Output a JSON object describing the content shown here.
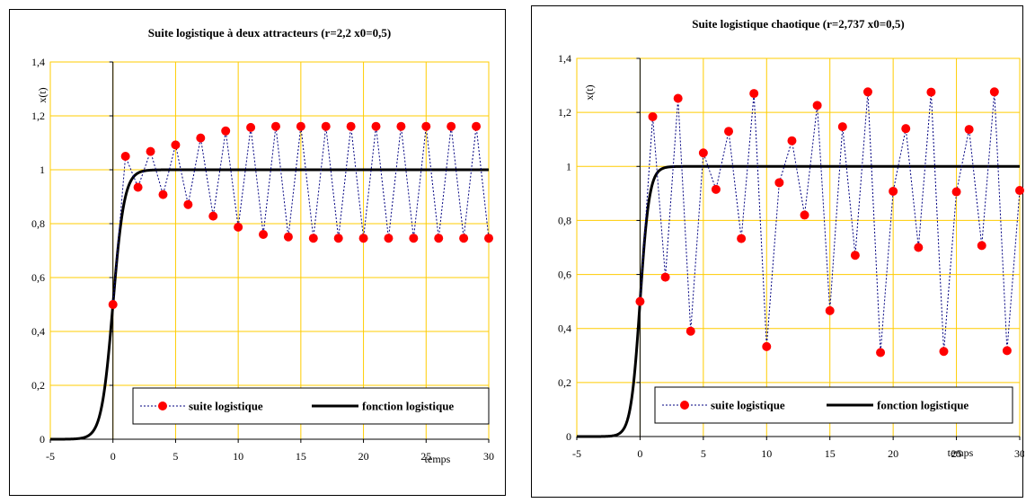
{
  "colors": {
    "plot_background": "#ffffff",
    "gridline": "#ffcc00",
    "axis": "#000000",
    "marker": "#ff0000",
    "dotted_line": "#000080",
    "function_line": "#000000"
  },
  "chart_data": [
    {
      "type": "line",
      "title": "Suite logistique à deux attracteurs (r=2,2 x0=0,5)",
      "ylabel": "x(t)",
      "xlabel": "temps",
      "xlim": [
        -5,
        30
      ],
      "ylim": [
        0,
        1.4
      ],
      "x_ticks": [
        "-5",
        "0",
        "5",
        "10",
        "15",
        "20",
        "25",
        "30"
      ],
      "y_ticks": [
        "0",
        "0,2",
        "0,4",
        "0,6",
        "0,8",
        "1",
        "1,2",
        "1,4"
      ],
      "grid": true,
      "legend": "bottom-right",
      "series": [
        {
          "name": "suite logistique",
          "x": [
            0,
            1,
            2,
            3,
            4,
            5,
            6,
            7,
            8,
            9,
            10,
            11,
            12,
            13,
            14,
            15,
            16,
            17,
            18,
            19,
            20,
            21,
            22,
            23,
            24,
            25,
            26,
            27,
            28,
            29,
            30
          ],
          "y": [
            0.5,
            1.05,
            0.935,
            1.068,
            0.908,
            1.092,
            0.871,
            1.118,
            0.828,
            1.144,
            0.787,
            1.157,
            0.76,
            1.161,
            0.751,
            1.161,
            0.746,
            1.161,
            0.746,
            1.161,
            0.746,
            1.161,
            0.746,
            1.161,
            0.746,
            1.161,
            0.746,
            1.161,
            0.746,
            1.161,
            0.746
          ]
        },
        {
          "name": "fonction logistique",
          "function": "logistic",
          "r": 2.2,
          "x0": 0.5,
          "x_range": [
            -5,
            30
          ]
        }
      ]
    },
    {
      "type": "line",
      "title": "Suite logistique chaotique (r=2,737  x0=0,5)",
      "ylabel": "x(t)",
      "xlabel": "temps",
      "xlim": [
        -5,
        30
      ],
      "ylim": [
        0,
        1.4
      ],
      "x_ticks": [
        "-5",
        "0",
        "5",
        "10",
        "15",
        "20",
        "25",
        "30"
      ],
      "y_ticks": [
        "0",
        "0,2",
        "0,4",
        "0,6",
        "0,8",
        "1",
        "1,2",
        "1,4"
      ],
      "grid": true,
      "legend": "bottom-right",
      "series": [
        {
          "name": "suite logistique",
          "x": [
            0,
            1,
            2,
            3,
            4,
            5,
            6,
            7,
            8,
            9,
            10,
            11,
            12,
            13,
            14,
            15,
            16,
            17,
            18,
            19,
            20,
            21,
            22,
            23,
            24,
            25,
            26,
            27,
            28,
            29,
            30
          ],
          "y": [
            0.5,
            1.184,
            0.59,
            1.252,
            0.39,
            1.05,
            0.915,
            1.13,
            0.733,
            1.27,
            0.333,
            0.94,
            1.095,
            0.82,
            1.226,
            0.466,
            1.147,
            0.671,
            1.276,
            0.311,
            0.908,
            1.14,
            0.7,
            1.275,
            0.315,
            0.906,
            1.137,
            0.707,
            1.276,
            0.318,
            0.911
          ]
        },
        {
          "name": "fonction logistique",
          "function": "logistic",
          "r": 2.737,
          "x0": 0.5,
          "x_range": [
            -5,
            30
          ]
        }
      ]
    }
  ]
}
